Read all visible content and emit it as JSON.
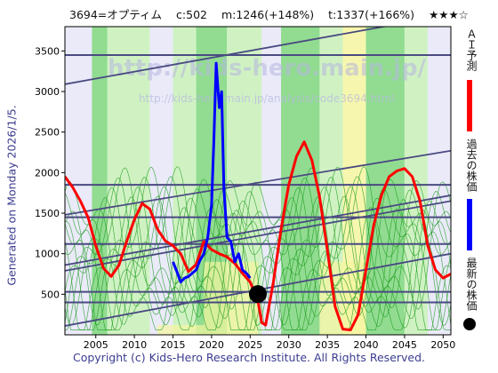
{
  "header": {
    "code": "3694=オプティム",
    "current": "c:502",
    "mean": "m:1246(+148%)",
    "target": "t:1337(+166%)",
    "rating": "★★★☆"
  },
  "generated": "Generated on Monday 2026/1/5.",
  "copyright": "Copyright (c) Kids-Hero Research Institute. All Rights Reserved.",
  "watermark": [
    "http://kids-hero.main.jp/",
    "http://kids-hero.main.jp/analysis/code3694.html"
  ],
  "legend": [
    {
      "label": "ＡＩ予測",
      "color": "#ff0000"
    },
    {
      "label": "過去の株価",
      "color": "#0000ff"
    },
    {
      "label": "最新の株価",
      "color": "#000000"
    }
  ],
  "chart_data": {
    "type": "line",
    "xlim": [
      2001,
      2051
    ],
    "ylim": [
      0,
      3800
    ],
    "x_ticks": [
      2005,
      2010,
      2015,
      2020,
      2025,
      2030,
      2035,
      2040,
      2045,
      2050
    ],
    "y_ticks": [
      500,
      1000,
      1500,
      2000,
      2500,
      3000,
      3500
    ],
    "horizontal_levels": [
      400,
      530,
      1120,
      1450,
      1850,
      3450
    ],
    "trend_lines": [
      {
        "from": [
          2001,
          3090
        ],
        "to": [
          2051,
          3950
        ]
      },
      {
        "from": [
          2001,
          1480
        ],
        "to": [
          2051,
          2270
        ]
      },
      {
        "from": [
          2001,
          860
        ],
        "to": [
          2051,
          1720
        ]
      },
      {
        "from": [
          2001,
          790
        ],
        "to": [
          2051,
          1650
        ]
      },
      {
        "from": [
          2001,
          110
        ],
        "to": [
          2051,
          1000
        ]
      }
    ],
    "series": [
      {
        "color": "#ff0000",
        "x": [
          2001,
          2002,
          2003,
          2004,
          2005,
          2006,
          2007,
          2008,
          2009,
          2010,
          2011,
          2012,
          2013,
          2014,
          2015,
          2016,
          2017,
          2018,
          2019,
          2020,
          2021,
          2022,
          2023,
          2024,
          2025,
          2026,
          2026.5,
          2027,
          2028,
          2029,
          2030,
          2031,
          2032,
          2033,
          2034,
          2035,
          2036,
          2037,
          2038,
          2039,
          2040,
          2041,
          2042,
          2043,
          2044,
          2045,
          2046,
          2047,
          2048,
          2049,
          2050,
          2051
        ],
        "y": [
          1950,
          1820,
          1650,
          1450,
          1100,
          820,
          720,
          860,
          1150,
          1420,
          1620,
          1550,
          1300,
          1160,
          1100,
          1000,
          780,
          870,
          1150,
          1050,
          1000,
          960,
          880,
          760,
          650,
          420,
          150,
          120,
          650,
          1300,
          1850,
          2200,
          2380,
          2150,
          1700,
          1050,
          350,
          70,
          60,
          250,
          800,
          1350,
          1720,
          1950,
          2020,
          2050,
          1950,
          1650,
          1100,
          800,
          700,
          750
        ]
      },
      {
        "color": "#0000ff",
        "x": [
          2015,
          2015.5,
          2016,
          2016.5,
          2017,
          2017.5,
          2018,
          2018.5,
          2019,
          2019.5,
          2020,
          2020.3,
          2020.6,
          2021,
          2021.3,
          2021.6,
          2022,
          2022.5,
          2023,
          2023.5,
          2024,
          2024.5,
          2025
        ],
        "y": [
          900,
          780,
          650,
          700,
          720,
          760,
          800,
          920,
          1000,
          1200,
          1600,
          2400,
          3350,
          2800,
          3000,
          1800,
          1200,
          1150,
          900,
          1000,
          800,
          760,
          700
        ]
      }
    ],
    "latest": {
      "x": 2026,
      "y": 502
    }
  }
}
